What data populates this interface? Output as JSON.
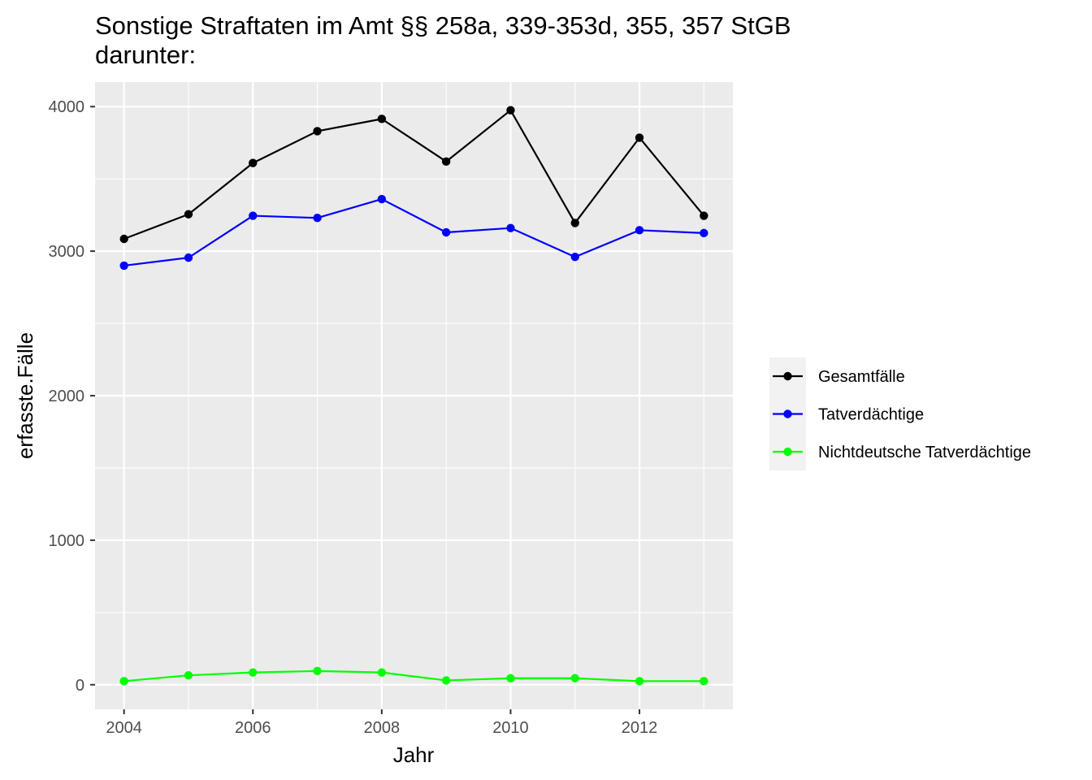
{
  "chart_data": {
    "type": "line",
    "title": "Sonstige Straftaten im Amt §§ 258a, 339-353d, 355, 357 StGB",
    "subtitle": "darunter:",
    "xlabel": "Jahr",
    "ylabel": "erfasste.Fälle",
    "xlim": [
      2003.55,
      2013.45
    ],
    "ylim": [
      -170,
      4170
    ],
    "x_ticks": [
      2004,
      2006,
      2008,
      2010,
      2012
    ],
    "y_ticks": [
      0,
      1000,
      2000,
      3000,
      4000
    ],
    "x_tick_labels": [
      "2004",
      "2006",
      "2008",
      "2010",
      "2012"
    ],
    "y_tick_labels": [
      "0",
      "1000",
      "2000",
      "3000",
      "4000"
    ],
    "grid": true,
    "legend_position": "right",
    "x": [
      2004,
      2005,
      2006,
      2007,
      2008,
      2009,
      2010,
      2011,
      2012,
      2013
    ],
    "series": [
      {
        "name": "Gesamtfälle",
        "color": "#000000",
        "values": [
          3085,
          3255,
          3610,
          3830,
          3915,
          3620,
          3975,
          3195,
          3785,
          3245
        ]
      },
      {
        "name": "Tatverdächtige",
        "color": "#0000ff",
        "values": [
          2900,
          2955,
          3245,
          3230,
          3360,
          3130,
          3160,
          2960,
          3145,
          3125
        ]
      },
      {
        "name": "Nichtdeutsche Tatverdächtige",
        "color": "#00ff00",
        "values": [
          25,
          65,
          85,
          95,
          85,
          30,
          45,
          45,
          25,
          25
        ]
      }
    ]
  }
}
